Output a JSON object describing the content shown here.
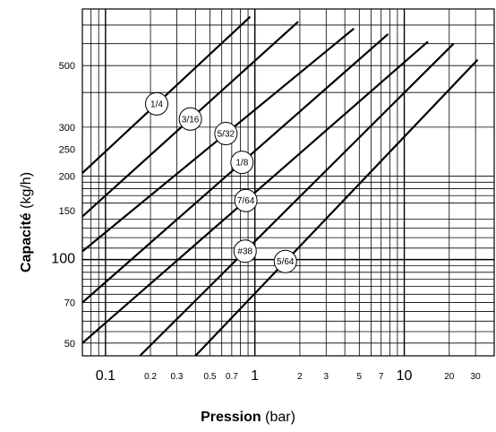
{
  "chart_data": {
    "type": "line",
    "xscale": "log",
    "yscale": "log",
    "xlim": [
      0.07,
      40
    ],
    "ylim": [
      45,
      800
    ],
    "grid": true,
    "xlabel": {
      "bold": "Pression",
      "normal": " (bar)"
    },
    "ylabel": {
      "bold": "Capacité",
      "normal": " (kg/h)"
    },
    "x_ticks": [
      {
        "value": 0.1,
        "label": "0.1",
        "major": true
      },
      {
        "value": 0.2,
        "label": "0.2",
        "major": false
      },
      {
        "value": 0.3,
        "label": "0.3",
        "major": false
      },
      {
        "value": 0.5,
        "label": "0.5",
        "major": false
      },
      {
        "value": 0.7,
        "label": "0.7",
        "major": false
      },
      {
        "value": 1,
        "label": "1",
        "major": true
      },
      {
        "value": 2,
        "label": "2",
        "major": false
      },
      {
        "value": 3,
        "label": "3",
        "major": false
      },
      {
        "value": 5,
        "label": "5",
        "major": false
      },
      {
        "value": 7,
        "label": "7",
        "major": false
      },
      {
        "value": 10,
        "label": "10",
        "major": true
      },
      {
        "value": 20,
        "label": "20",
        "major": false
      },
      {
        "value": 30,
        "label": "30",
        "major": false
      }
    ],
    "y_ticks": [
      {
        "value": 50,
        "label": "50"
      },
      {
        "value": 70,
        "label": "70"
      },
      {
        "value": 100,
        "label": "100"
      },
      {
        "value": 150,
        "label": "150"
      },
      {
        "value": 200,
        "label": "200"
      },
      {
        "value": 250,
        "label": "250"
      },
      {
        "value": 300,
        "label": "300"
      },
      {
        "value": 500,
        "label": "500"
      }
    ],
    "series": [
      {
        "name": "1/4",
        "x": [
          0.07,
          0.93
        ],
        "y": [
          205,
          750
        ],
        "label_at": 0.22
      },
      {
        "name": "3/16",
        "x": [
          0.07,
          1.95
        ],
        "y": [
          143,
          720
        ],
        "label_at": 0.37
      },
      {
        "name": "5/32",
        "x": [
          0.07,
          4.6
        ],
        "y": [
          107,
          680
        ],
        "label_at": 0.64
      },
      {
        "name": "1/8",
        "x": [
          0.07,
          7.8
        ],
        "y": [
          70,
          650
        ],
        "label_at": 0.82
      },
      {
        "name": "7/64",
        "x": [
          0.07,
          14.4
        ],
        "y": [
          50,
          610
        ],
        "label_at": 0.87
      },
      {
        "name": "#38",
        "x": [
          0.17,
          21.4
        ],
        "y": [
          45,
          600
        ],
        "label_at": 0.86
      },
      {
        "name": "5/64",
        "x": [
          0.4,
          31.0
        ],
        "y": [
          45,
          525
        ],
        "label_at": 1.6
      }
    ]
  }
}
